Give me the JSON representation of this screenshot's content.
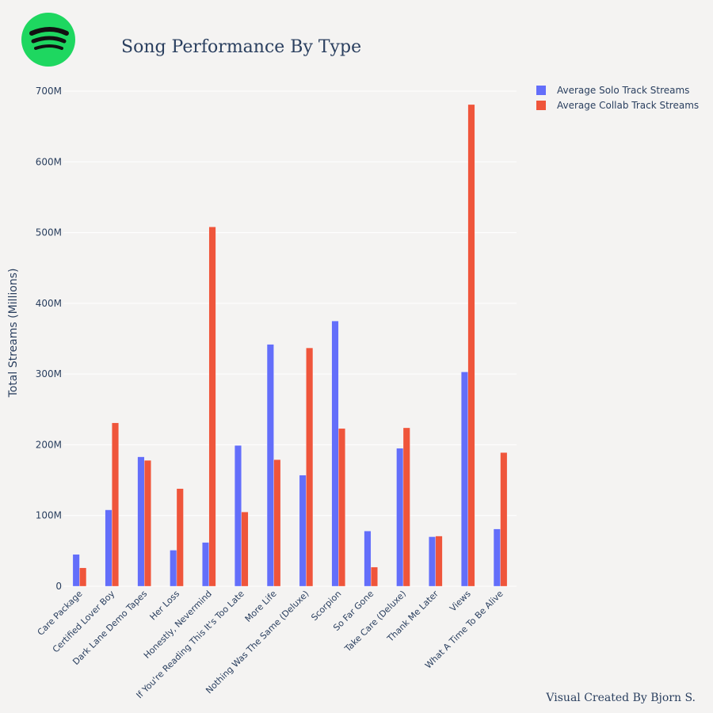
{
  "logo": {
    "icon": "spotify-logo-icon",
    "color": "#1ed760"
  },
  "credit": "Visual Created By Bjorn S.",
  "chart_data": {
    "type": "bar",
    "title": "Song Performance By Type",
    "xlabel": "",
    "ylabel": "Total Streams (Millions)",
    "ylim": [
      0,
      700
    ],
    "yticks": [
      0,
      100,
      200,
      300,
      400,
      500,
      600,
      700
    ],
    "ytick_labels": [
      "0",
      "100M",
      "200M",
      "300M",
      "400M",
      "500M",
      "600M",
      "700M"
    ],
    "grid": true,
    "legend_position": "top-right",
    "categories": [
      "Care Package",
      "Certified Lover Boy",
      "Dark Lane Demo Tapes",
      "Her Loss",
      "Honestly, Nevermind",
      "If You're Reading This It's Too Late",
      "More Life",
      "Nothing Was The Same (Deluxe)",
      "Scorpion",
      "So Far Gone",
      "Take Care (Deluxe)",
      "Thank Me Later",
      "Views",
      "What A Time To Be Alive"
    ],
    "series": [
      {
        "name": "Average Solo Track Streams",
        "color": "#636efa",
        "values": [
          45,
          108,
          183,
          51,
          62,
          199,
          342,
          157,
          375,
          78,
          195,
          70,
          303,
          81
        ]
      },
      {
        "name": "Average Collab Track Streams",
        "color": "#ef553b",
        "values": [
          26,
          231,
          178,
          138,
          508,
          105,
          179,
          337,
          223,
          27,
          224,
          71,
          681,
          189
        ]
      }
    ]
  }
}
